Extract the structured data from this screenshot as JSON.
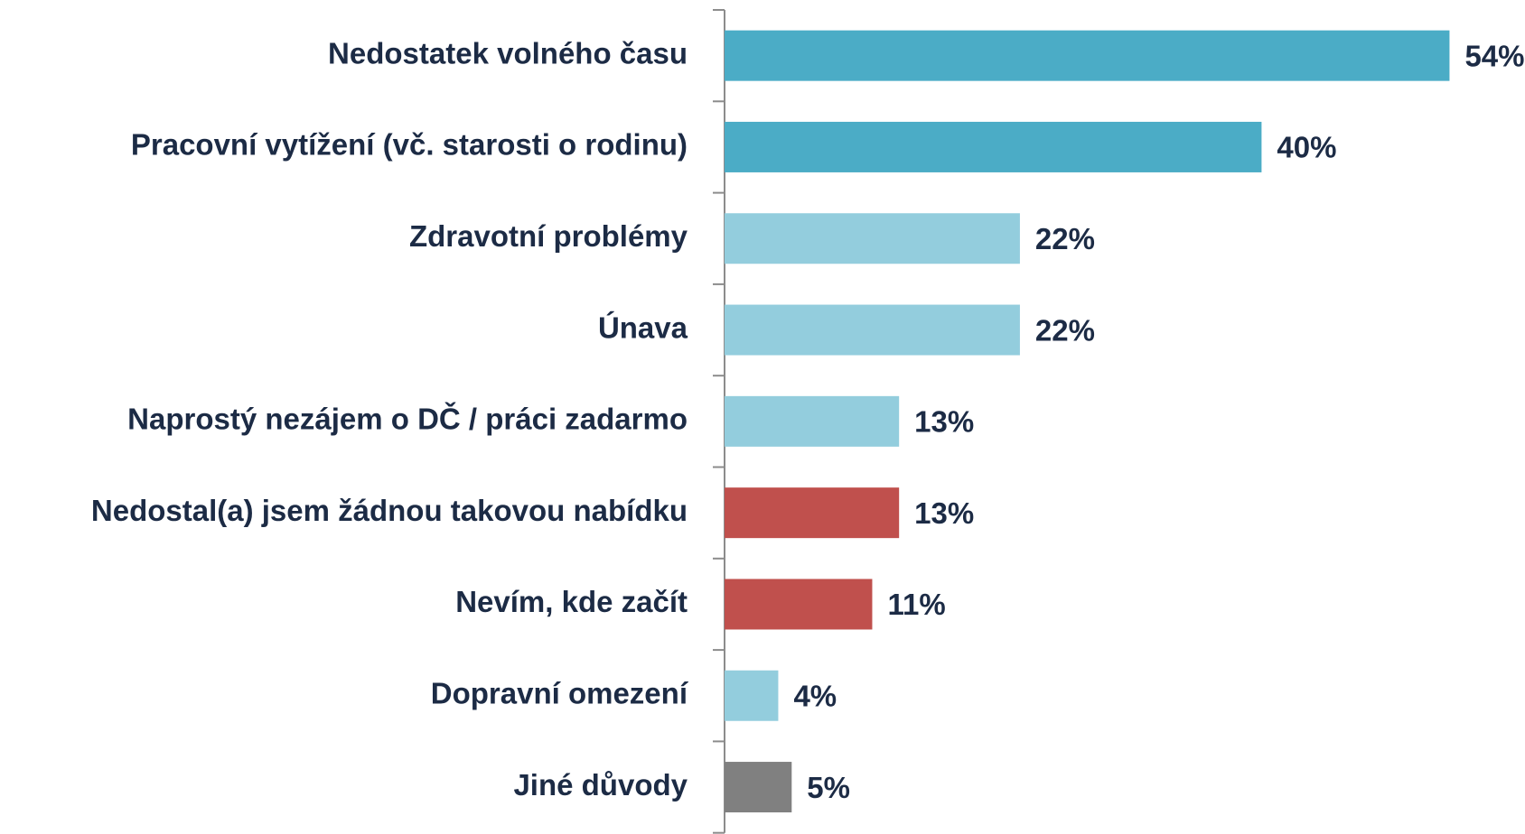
{
  "chart_data": {
    "type": "barh",
    "categories": [
      "Nedostatek volného času",
      "Pracovní vytížení (vč. starosti o rodinu)",
      "Zdravotní problémy",
      "Únava",
      "Naprostý nezájem o DČ / práci zadarmo",
      "Nedostal(a) jsem žádnou takovou nabídku",
      "Nevím, kde začít",
      "Dopravní omezení",
      "Jiné důvody"
    ],
    "values": [
      54,
      40,
      22,
      22,
      13,
      13,
      11,
      4,
      5
    ],
    "value_labels": [
      "54%",
      "40%",
      "22%",
      "22%",
      "13%",
      "13%",
      "11%",
      "4%",
      "5%"
    ],
    "colors": [
      "#4bacc6",
      "#4bacc6",
      "#93cddd",
      "#93cddd",
      "#93cddd",
      "#c0504d",
      "#c0504d",
      "#93cddd",
      "#808080"
    ]
  }
}
